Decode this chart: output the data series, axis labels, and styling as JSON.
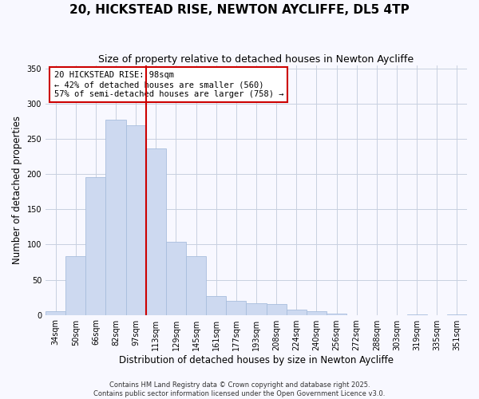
{
  "title": "20, HICKSTEAD RISE, NEWTON AYCLIFFE, DL5 4TP",
  "subtitle": "Size of property relative to detached houses in Newton Aycliffe",
  "xlabel": "Distribution of detached houses by size in Newton Aycliffe",
  "ylabel": "Number of detached properties",
  "categories": [
    "34sqm",
    "50sqm",
    "66sqm",
    "82sqm",
    "97sqm",
    "113sqm",
    "129sqm",
    "145sqm",
    "161sqm",
    "177sqm",
    "193sqm",
    "208sqm",
    "224sqm",
    "240sqm",
    "256sqm",
    "272sqm",
    "288sqm",
    "303sqm",
    "319sqm",
    "335sqm",
    "351sqm"
  ],
  "values": [
    5,
    83,
    196,
    277,
    270,
    237,
    104,
    83,
    27,
    20,
    17,
    15,
    7,
    5,
    2,
    0,
    0,
    0,
    1,
    0,
    1
  ],
  "bar_color": "#cdd9f0",
  "bar_edge_color": "#a8bedd",
  "highlight_bar_index": 4,
  "annotation_text_line1": "20 HICKSTEAD RISE: 98sqm",
  "annotation_text_line2": "← 42% of detached houses are smaller (560)",
  "annotation_text_line3": "57% of semi-detached houses are larger (758) →",
  "ylim": [
    0,
    355
  ],
  "yticks": [
    0,
    50,
    100,
    150,
    200,
    250,
    300,
    350
  ],
  "footer_line1": "Contains HM Land Registry data © Crown copyright and database right 2025.",
  "footer_line2": "Contains public sector information licensed under the Open Government Licence v3.0.",
  "background_color": "#f8f8ff",
  "grid_color": "#c8d0e0",
  "title_fontsize": 11,
  "subtitle_fontsize": 9,
  "axis_label_fontsize": 8.5,
  "tick_fontsize": 7,
  "annotation_fontsize": 7.5,
  "footer_fontsize": 6
}
